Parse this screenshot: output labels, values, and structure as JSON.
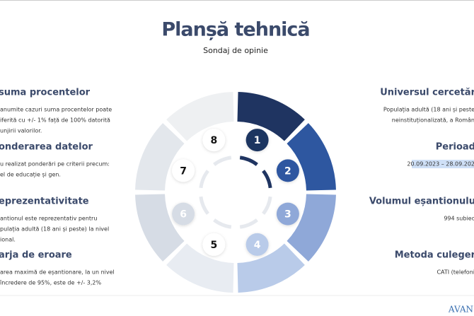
{
  "header": {
    "title": "Planșă tehnică",
    "subtitle": "Sondaj de opinie"
  },
  "left_sections": [
    {
      "heading": "suma procentelor",
      "lines": [
        "anumite cazuri suma procentelor poate",
        "iferită cu +/- 1% față de 100% datorită",
        "unjirii valorilor."
      ]
    },
    {
      "heading": "onderarea datelor",
      "lines": [
        "u realizat ponderări pe criterii precum:",
        "el de educație și gen."
      ]
    },
    {
      "heading": "eprezentativitate",
      "lines": [
        "antionul este reprezentativ pentru",
        "pulația adultă (18 ani și peste) la nivel",
        "ional."
      ]
    },
    {
      "heading": "arja de eroare",
      "lines": [
        "area maximă de eșantionare, la un nivel",
        "încredere de 95%, este de +/- 3,2%"
      ]
    }
  ],
  "right_sections": [
    {
      "heading": "Universul cercetăr",
      "lines": [
        "Populația adultă (18 ani și peste",
        "neinstituționalizată, a Român"
      ]
    },
    {
      "heading": "Perioad",
      "lines": [
        "20.09.2023 – 28.09.202"
      ]
    },
    {
      "heading": "Volumul eșantionulu",
      "lines": [
        "994 subiec"
      ]
    },
    {
      "heading": "Metoda culeger",
      "lines": [
        "CATI (telefoni"
      ]
    }
  ],
  "wheel": {
    "labels": [
      "1",
      "2",
      "3",
      "4",
      "5",
      "6",
      "7",
      "8"
    ]
  },
  "logo": "AVAN"
}
